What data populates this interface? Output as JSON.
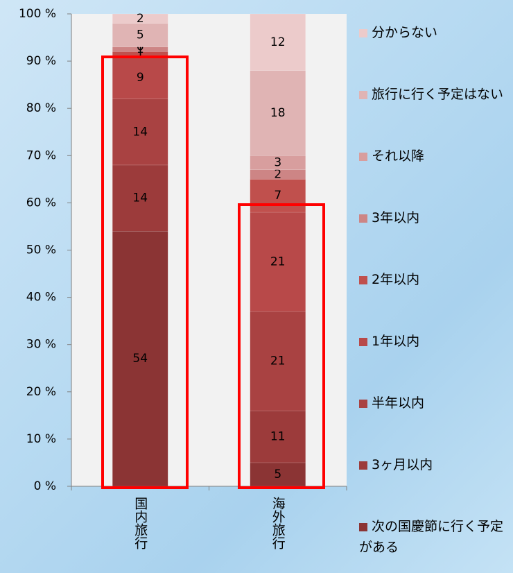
{
  "chart_data": {
    "type": "stacked_bar",
    "categories": [
      "国内旅行",
      "海外旅行"
    ],
    "series": [
      {
        "name": "次の国慶節に行く予定がある",
        "color": "#8b3434",
        "values": [
          54,
          5
        ]
      },
      {
        "name": "3ヶ月以内",
        "color": "#9c3b3b",
        "values": [
          14,
          11
        ]
      },
      {
        "name": "半年以内",
        "color": "#a94242",
        "values": [
          14,
          21
        ]
      },
      {
        "name": "1年以内",
        "color": "#b84949",
        "values": [
          9,
          21
        ]
      },
      {
        "name": "2年以内",
        "color": "#c0504d",
        "values": [
          1,
          7
        ]
      },
      {
        "name": "3年以内",
        "color": "#cd8585",
        "values": [
          1,
          2
        ]
      },
      {
        "name": "それ以降",
        "color": "#d89e9e",
        "values": [
          0,
          3
        ]
      },
      {
        "name": "旅行に行く予定はない",
        "color": "#e0b4b4",
        "values": [
          5,
          18
        ]
      },
      {
        "name": "分からない",
        "color": "#eccbcb",
        "values": [
          2,
          12
        ]
      }
    ],
    "ylim": [
      0,
      100
    ],
    "yticks": [
      {
        "value": 0,
        "label": "0 %"
      },
      {
        "value": 10,
        "label": "10 %"
      },
      {
        "value": 20,
        "label": "20 %"
      },
      {
        "value": 30,
        "label": "30 %"
      },
      {
        "value": 40,
        "label": "40 %"
      },
      {
        "value": 50,
        "label": "50 %"
      },
      {
        "value": 60,
        "label": "60 %"
      },
      {
        "value": 70,
        "label": "70 %"
      },
      {
        "value": 80,
        "label": "80 %"
      },
      {
        "value": 90,
        "label": "90 %"
      },
      {
        "value": 100,
        "label": "100 %"
      }
    ]
  }
}
